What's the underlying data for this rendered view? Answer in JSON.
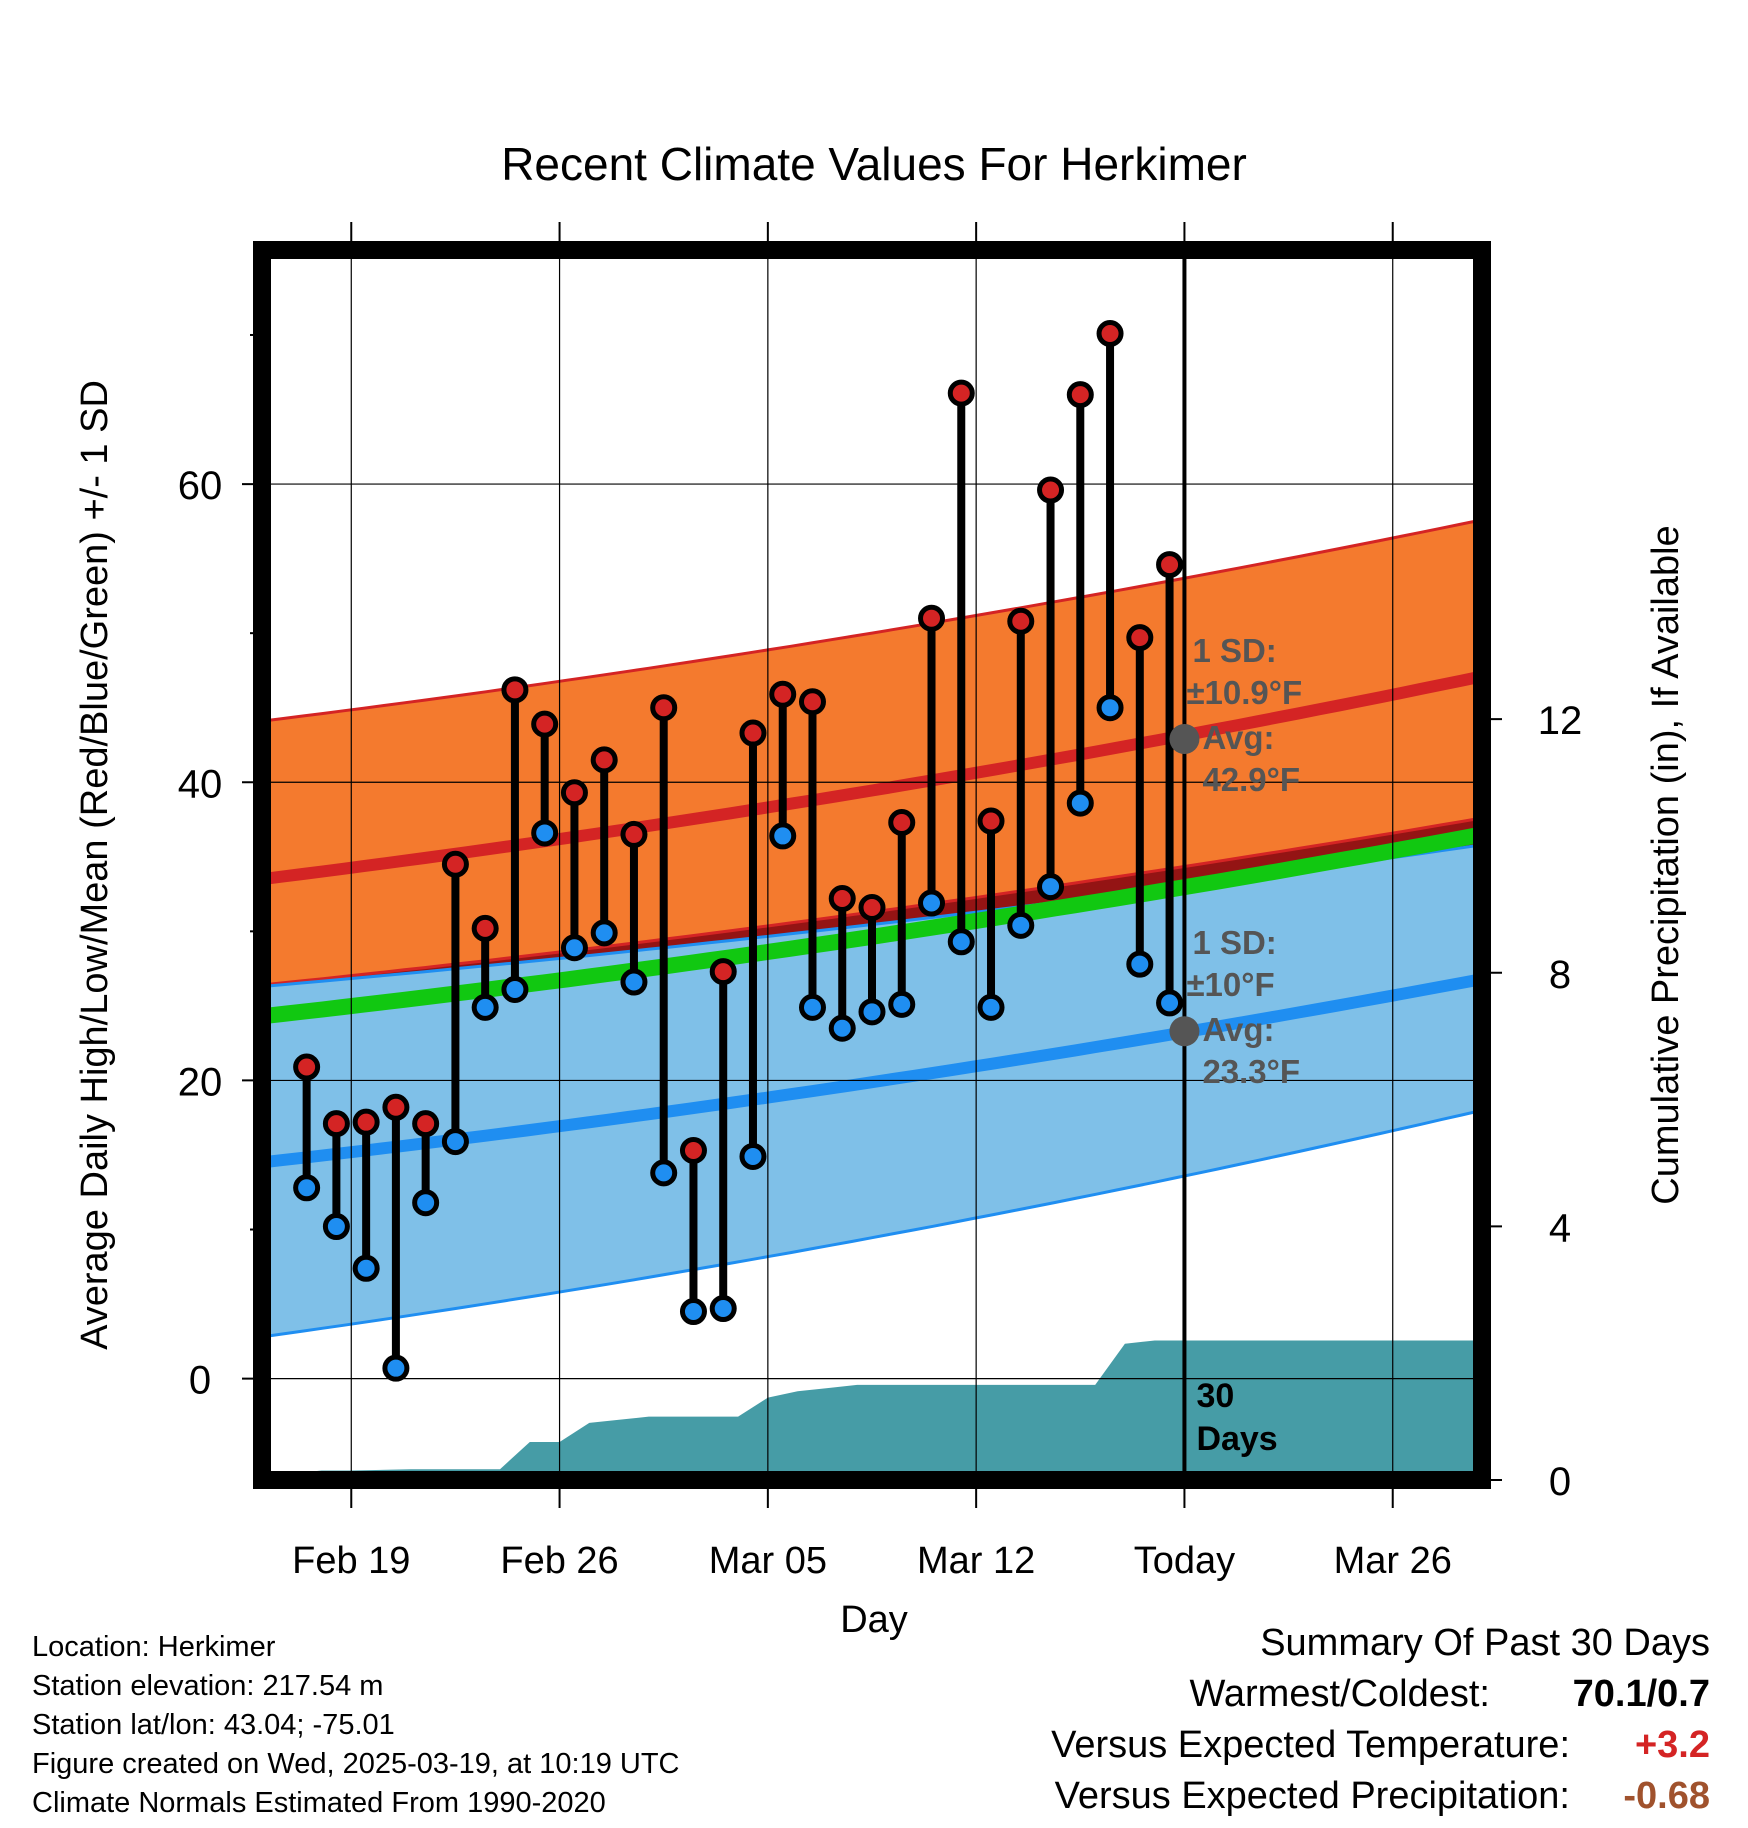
{
  "chart_data": {
    "type": "line",
    "title": "Recent Climate Values For Herkimer",
    "xlabel": "Day",
    "ylabel": "Average Daily High/Low/Mean (Red/Blue/Green) +/- 1 SD",
    "y2label": "Cumulative Precipitation (in), If Available",
    "x_tick_labels": [
      "Feb 19",
      "Feb 26",
      "Mar 05",
      "Mar 12",
      "Today",
      "Mar 26"
    ],
    "x_tick_dates": [
      "2025-02-19",
      "2025-02-26",
      "2025-03-05",
      "2025-03-12",
      "2025-03-19",
      "2025-03-26"
    ],
    "x_range": [
      "2025-02-16",
      "2025-03-29"
    ],
    "y_ticks": [
      0,
      20,
      40,
      60
    ],
    "ylim": [
      -6.8,
      75.7
    ],
    "y2_ticks": [
      0,
      4,
      8,
      12
    ],
    "y2lim": [
      0,
      19.4
    ],
    "grid": true,
    "today": "2025-03-19",
    "dates": [
      "2025-02-17",
      "2025-02-18",
      "2025-02-19",
      "2025-02-20",
      "2025-02-21",
      "2025-02-22",
      "2025-02-23",
      "2025-02-24",
      "2025-02-25",
      "2025-02-26",
      "2025-02-27",
      "2025-02-28",
      "2025-03-01",
      "2025-03-02",
      "2025-03-03",
      "2025-03-04",
      "2025-03-05",
      "2025-03-06",
      "2025-03-07",
      "2025-03-08",
      "2025-03-09",
      "2025-03-10",
      "2025-03-11",
      "2025-03-12",
      "2025-03-13",
      "2025-03-14",
      "2025-03-15",
      "2025-03-16",
      "2025-03-17",
      "2025-03-18"
    ],
    "highs": [
      20.9,
      17.1,
      17.2,
      18.2,
      17.1,
      34.5,
      30.2,
      46.2,
      43.9,
      39.3,
      41.5,
      36.5,
      45.0,
      15.3,
      27.3,
      43.3,
      45.9,
      45.4,
      32.2,
      31.6,
      37.3,
      51.0,
      66.1,
      37.4,
      50.8,
      59.6,
      66.0,
      70.1,
      49.7,
      54.6
    ],
    "lows": [
      12.8,
      10.2,
      7.4,
      0.7,
      11.8,
      15.9,
      24.9,
      26.1,
      36.6,
      28.9,
      29.9,
      26.6,
      13.8,
      4.5,
      4.7,
      14.9,
      36.4,
      24.9,
      23.5,
      24.6,
      25.1,
      31.9,
      29.3,
      24.9,
      30.4,
      33.0,
      38.6,
      45.0,
      27.8,
      25.2
    ],
    "normal_high": {
      "start": 33.5,
      "end": 47.1
    },
    "normal_high_band": {
      "upper_start": 44.1,
      "upper_end": 57.6,
      "lower_start": 26.4,
      "lower_end": 37.6
    },
    "normal_low": {
      "start": 14.5,
      "end": 26.8
    },
    "normal_low_band": {
      "upper_start": 26.3,
      "upper_end": 35.8,
      "lower_start": 2.8,
      "lower_end": 18.0
    },
    "normal_mean": {
      "start": 24.3,
      "end": 36.5
    },
    "today_high": {
      "sd_label": "1 SD:",
      "sd_value": "±10.9°F",
      "avg_label": "Avg:",
      "avg_value": "42.9°F",
      "value": 42.9
    },
    "today_low": {
      "sd_label": "1 SD:",
      "sd_value": "±10°F",
      "avg_label": "Avg:",
      "avg_value": "23.3°F",
      "value": 23.3
    },
    "precip_label_line1": "30",
    "precip_label_line2": "Days",
    "precip_steps": [
      [
        "2025-02-16",
        0.0
      ],
      [
        "2025-02-17",
        0.1
      ],
      [
        "2025-02-18",
        0.15
      ],
      [
        "2025-02-19",
        0.15
      ],
      [
        "2025-02-21",
        0.17
      ],
      [
        "2025-02-24",
        0.17
      ],
      [
        "2025-02-25",
        0.6
      ],
      [
        "2025-02-26",
        0.6
      ],
      [
        "2025-02-27",
        0.9
      ],
      [
        "2025-02-28",
        0.95
      ],
      [
        "2025-03-01",
        1.0
      ],
      [
        "2025-03-03",
        1.0
      ],
      [
        "2025-03-04",
        1.0
      ],
      [
        "2025-03-05",
        1.3
      ],
      [
        "2025-03-06",
        1.4
      ],
      [
        "2025-03-07",
        1.45
      ],
      [
        "2025-03-08",
        1.5
      ],
      [
        "2025-03-16",
        1.5
      ],
      [
        "2025-03-17",
        2.15
      ],
      [
        "2025-03-18",
        2.2
      ],
      [
        "2025-03-29",
        2.2
      ]
    ],
    "colors": {
      "high_band": "#f47a2e",
      "low_band": "#7fc0e8",
      "high_line": "#d42424",
      "low_line": "#1f8ef1",
      "mean_line": "#11c811",
      "precip": "#469ca6",
      "high_dot": "#d42424",
      "low_dot": "#1f8ef1",
      "annotation": "#555555"
    }
  },
  "footer": {
    "location": "Location: Herkimer",
    "elevation": "Station elevation: 217.54 m",
    "latlon": "Station lat/lon: 43.04; -75.01",
    "created": "Figure created on Wed, 2025-03-19, at 10:19 UTC",
    "normals": "Climate Normals Estimated From 1990-2020"
  },
  "summary": {
    "title": "Summary Of Past 30 Days",
    "warm_cold_label": "Warmest/Coldest:",
    "warm_cold_value": "70.1/0.7",
    "temp_label": "Versus Expected Temperature:",
    "temp_value": "+3.2",
    "temp_color": "#d42424",
    "precip_label": "Versus Expected Precipitation:",
    "precip_value": "-0.68",
    "precip_color": "#a0522d"
  }
}
